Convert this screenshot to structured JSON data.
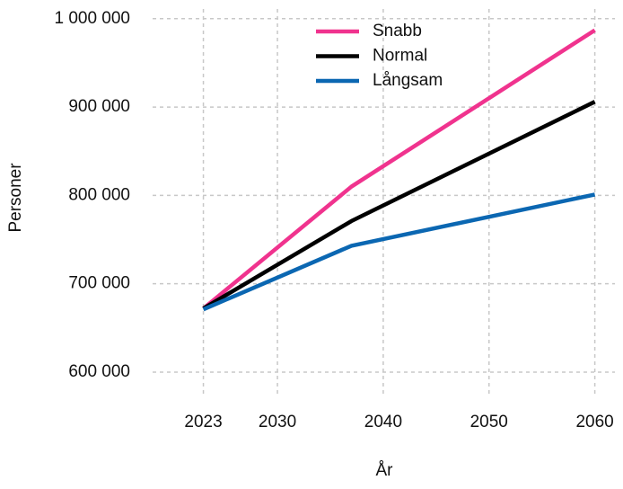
{
  "chart_data": {
    "type": "line",
    "x_label": "År",
    "y_label": "Personer",
    "x": [
      2023,
      2037,
      2060
    ],
    "series": [
      {
        "name": "Snabb",
        "color": "#f0338e",
        "values": [
          672000,
          810000,
          987000
        ]
      },
      {
        "name": "Normal",
        "color": "#000000",
        "values": [
          672000,
          771000,
          906000
        ]
      },
      {
        "name": "Långsam",
        "color": "#0b67b2",
        "values": [
          671000,
          743000,
          801000
        ]
      }
    ],
    "xlim": [
      2018.2,
      2061.9
    ],
    "xticks": [
      2023,
      2030,
      2040,
      2050,
      2060
    ],
    "ylim": [
      573500,
      1011000
    ],
    "yticks": [
      {
        "value": 600000,
        "label": "600 000"
      },
      {
        "value": 700000,
        "label": "700 000"
      },
      {
        "value": 800000,
        "label": "800 000"
      },
      {
        "value": 900000,
        "label": "900 000"
      },
      {
        "value": 1000000,
        "label": "1 000 000"
      }
    ],
    "grid": true,
    "legend": "top"
  }
}
